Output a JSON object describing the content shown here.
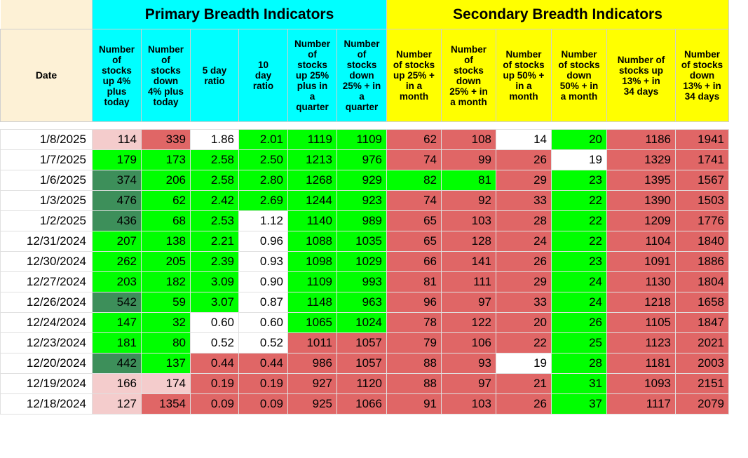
{
  "groups": {
    "primary": "Primary Breadth Indicators",
    "secondary": "Secondary Breadth Indicators"
  },
  "headers": [
    "Date",
    "Number of stocks up 4% plus today",
    "Number of stocks down 4% plus today",
    "5 day ratio",
    "10 day ratio",
    "Number of stocks up 25% plus in a quarter",
    "Number of stocks down 25% + in a quarter",
    "Number of stocks up 25% + in a month",
    "Number of stocks down 25% + in a month",
    "Number of stocks up 50% + in a month",
    "Number of stocks down 50% + in a month",
    "Number of stocks up 13% + in 34 days",
    "Number of stocks down 13% + in 34 days"
  ],
  "header_lines": [
    [
      "Date"
    ],
    [
      "Number",
      "of",
      "stocks",
      "up 4%",
      "plus",
      "today"
    ],
    [
      "Number",
      "of",
      "stocks",
      "down",
      "4% plus",
      "today"
    ],
    [
      "5 day",
      "ratio"
    ],
    [
      "10",
      "day",
      "ratio"
    ],
    [
      "Number",
      "of",
      "stocks",
      "up 25%",
      "plus in",
      "a",
      "quarter"
    ],
    [
      "Number",
      "of",
      "stocks",
      "down",
      "25% + in",
      "a",
      "quarter"
    ],
    [
      "Number",
      "of stocks",
      "up 25% +",
      "in a",
      "month"
    ],
    [
      "Number",
      "of",
      "stocks",
      "down",
      "25% + in",
      "a month"
    ],
    [
      "Number",
      "of stocks",
      "up 50% +",
      "in a",
      "month"
    ],
    [
      "Number",
      "of stocks",
      "down",
      "50% + in",
      "a month"
    ],
    [
      "Number of",
      "stocks up",
      "13% + in",
      "34 days"
    ],
    [
      "Number",
      "of stocks",
      "down",
      "13% + in",
      "34 days"
    ]
  ],
  "colors": {
    "green": "#00ff00",
    "dark_green": "#3d8f5a",
    "red": "#e06666",
    "pink": "#f4cccc",
    "white": "#ffffff",
    "cyan": "#00ffff",
    "yellow": "#ffff00"
  },
  "rows": [
    {
      "date": "1/8/2025",
      "values": [
        "114",
        "339",
        "1.86",
        "2.01",
        "1119",
        "1109",
        "62",
        "108",
        "14",
        "20",
        "1186",
        "1941"
      ],
      "colors": [
        "pink",
        "red",
        "white",
        "green",
        "green",
        "green",
        "red",
        "red",
        "white",
        "green",
        "red",
        "red"
      ]
    },
    {
      "date": "1/7/2025",
      "values": [
        "179",
        "173",
        "2.58",
        "2.50",
        "1213",
        "976",
        "74",
        "99",
        "26",
        "19",
        "1329",
        "1741"
      ],
      "colors": [
        "green",
        "green",
        "green",
        "green",
        "green",
        "green",
        "red",
        "red",
        "red",
        "white",
        "red",
        "red"
      ]
    },
    {
      "date": "1/6/2025",
      "values": [
        "374",
        "206",
        "2.58",
        "2.80",
        "1268",
        "929",
        "82",
        "81",
        "29",
        "23",
        "1395",
        "1567"
      ],
      "colors": [
        "dark_green",
        "green",
        "green",
        "green",
        "green",
        "green",
        "green",
        "green",
        "red",
        "green",
        "red",
        "red"
      ]
    },
    {
      "date": "1/3/2025",
      "values": [
        "476",
        "62",
        "2.42",
        "2.69",
        "1244",
        "923",
        "74",
        "92",
        "33",
        "22",
        "1390",
        "1503"
      ],
      "colors": [
        "dark_green",
        "green",
        "green",
        "green",
        "green",
        "green",
        "red",
        "red",
        "red",
        "green",
        "red",
        "red"
      ]
    },
    {
      "date": "1/2/2025",
      "values": [
        "436",
        "68",
        "2.53",
        "1.12",
        "1140",
        "989",
        "65",
        "103",
        "28",
        "22",
        "1209",
        "1776"
      ],
      "colors": [
        "dark_green",
        "green",
        "green",
        "white",
        "green",
        "green",
        "red",
        "red",
        "red",
        "green",
        "red",
        "red"
      ]
    },
    {
      "date": "12/31/2024",
      "values": [
        "207",
        "138",
        "2.21",
        "0.96",
        "1088",
        "1035",
        "65",
        "128",
        "24",
        "22",
        "1104",
        "1840"
      ],
      "colors": [
        "green",
        "green",
        "green",
        "white",
        "green",
        "green",
        "red",
        "red",
        "red",
        "green",
        "red",
        "red"
      ]
    },
    {
      "date": "12/30/2024",
      "values": [
        "262",
        "205",
        "2.39",
        "0.93",
        "1098",
        "1029",
        "66",
        "141",
        "26",
        "23",
        "1091",
        "1886"
      ],
      "colors": [
        "green",
        "green",
        "green",
        "white",
        "green",
        "green",
        "red",
        "red",
        "red",
        "green",
        "red",
        "red"
      ]
    },
    {
      "date": "12/27/2024",
      "values": [
        "203",
        "182",
        "3.09",
        "0.90",
        "1109",
        "993",
        "81",
        "111",
        "29",
        "24",
        "1130",
        "1804"
      ],
      "colors": [
        "green",
        "green",
        "green",
        "white",
        "green",
        "green",
        "red",
        "red",
        "red",
        "green",
        "red",
        "red"
      ]
    },
    {
      "date": "12/26/2024",
      "values": [
        "542",
        "59",
        "3.07",
        "0.87",
        "1148",
        "963",
        "96",
        "97",
        "33",
        "24",
        "1218",
        "1658"
      ],
      "colors": [
        "dark_green",
        "green",
        "green",
        "white",
        "green",
        "green",
        "red",
        "red",
        "red",
        "green",
        "red",
        "red"
      ]
    },
    {
      "date": "12/24/2024",
      "values": [
        "147",
        "32",
        "0.60",
        "0.60",
        "1065",
        "1024",
        "78",
        "122",
        "20",
        "26",
        "1105",
        "1847"
      ],
      "colors": [
        "green",
        "green",
        "white",
        "white",
        "green",
        "green",
        "red",
        "red",
        "red",
        "green",
        "red",
        "red"
      ]
    },
    {
      "date": "12/23/2024",
      "values": [
        "181",
        "80",
        "0.52",
        "0.52",
        "1011",
        "1057",
        "79",
        "106",
        "22",
        "25",
        "1123",
        "2021"
      ],
      "colors": [
        "green",
        "green",
        "white",
        "white",
        "red",
        "red",
        "red",
        "red",
        "red",
        "green",
        "red",
        "red"
      ]
    },
    {
      "date": "12/20/2024",
      "values": [
        "442",
        "137",
        "0.44",
        "0.44",
        "986",
        "1057",
        "88",
        "93",
        "19",
        "28",
        "1181",
        "2003"
      ],
      "colors": [
        "dark_green",
        "green",
        "red",
        "red",
        "red",
        "red",
        "red",
        "red",
        "white",
        "green",
        "red",
        "red"
      ]
    },
    {
      "date": "12/19/2024",
      "values": [
        "166",
        "174",
        "0.19",
        "0.19",
        "927",
        "1120",
        "88",
        "97",
        "21",
        "31",
        "1093",
        "2151"
      ],
      "colors": [
        "pink",
        "pink",
        "red",
        "red",
        "red",
        "red",
        "red",
        "red",
        "red",
        "green",
        "red",
        "red"
      ]
    },
    {
      "date": "12/18/2024",
      "values": [
        "127",
        "1354",
        "0.09",
        "0.09",
        "925",
        "1066",
        "91",
        "103",
        "26",
        "37",
        "1117",
        "2079"
      ],
      "colors": [
        "pink",
        "red",
        "red",
        "red",
        "red",
        "red",
        "red",
        "red",
        "red",
        "green",
        "red",
        "red"
      ]
    }
  ]
}
